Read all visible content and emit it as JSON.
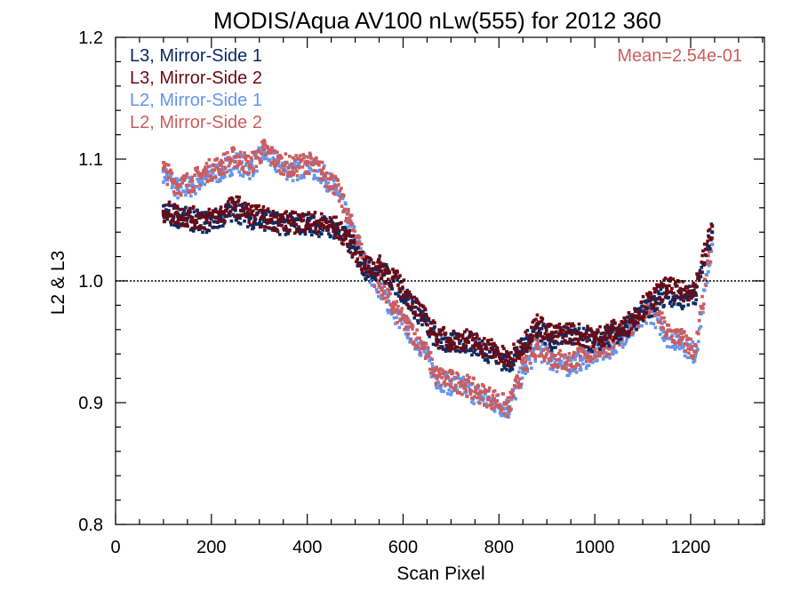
{
  "chart_data": {
    "type": "scatter",
    "title": "MODIS/Aqua AV100 nLw(555) for 2012 360",
    "xlabel": "Scan Pixel",
    "ylabel": "L2 & L3",
    "xlim": [
      0,
      1354
    ],
    "ylim": [
      0.8,
      1.2
    ],
    "x_ticks": [
      0,
      200,
      400,
      600,
      800,
      1000,
      1200
    ],
    "x_tick_labels": [
      "0",
      "200",
      "400",
      "600",
      "800",
      "1000",
      "1200"
    ],
    "y_ticks": [
      0.8,
      0.9,
      1.0,
      1.1,
      1.2
    ],
    "y_tick_labels": [
      "0.8",
      "0.9",
      "1.0",
      "1.1",
      "1.2"
    ],
    "reference_line": {
      "y": 1.0,
      "style": "dotted"
    },
    "annotation": {
      "text": "Mean=2.54e-01",
      "color": "#cd5c5c"
    },
    "legend_placement": "top-left",
    "grid": false,
    "series": [
      {
        "name": "L3, Mirror-Side 1",
        "color": "#0b2a63",
        "x": [
          100,
          130,
          160,
          190,
          220,
          250,
          280,
          310,
          340,
          370,
          400,
          430,
          460,
          490,
          520,
          550,
          580,
          610,
          640,
          670,
          700,
          730,
          760,
          790,
          820,
          850,
          880,
          910,
          940,
          970,
          1000,
          1030,
          1060,
          1090,
          1120,
          1150,
          1180,
          1210,
          1245
        ],
        "y": [
          1.055,
          1.053,
          1.05,
          1.048,
          1.052,
          1.058,
          1.052,
          1.05,
          1.047,
          1.046,
          1.047,
          1.045,
          1.043,
          1.03,
          1.01,
          1.01,
          1.0,
          0.985,
          0.97,
          0.952,
          0.948,
          0.95,
          0.945,
          0.94,
          0.932,
          0.945,
          0.962,
          0.952,
          0.955,
          0.953,
          0.95,
          0.955,
          0.958,
          0.97,
          0.98,
          0.99,
          0.985,
          0.99,
          1.04
        ]
      },
      {
        "name": "L3, Mirror-Side 2",
        "color": "#6b0a14",
        "x": [
          100,
          130,
          160,
          190,
          220,
          250,
          280,
          310,
          340,
          370,
          400,
          430,
          460,
          490,
          520,
          550,
          580,
          610,
          640,
          670,
          700,
          730,
          760,
          790,
          820,
          850,
          880,
          910,
          940,
          970,
          1000,
          1030,
          1060,
          1090,
          1120,
          1150,
          1180,
          1210,
          1245
        ],
        "y": [
          1.057,
          1.055,
          1.052,
          1.05,
          1.055,
          1.062,
          1.055,
          1.052,
          1.049,
          1.048,
          1.049,
          1.047,
          1.044,
          1.032,
          1.012,
          1.012,
          1.003,
          0.988,
          0.972,
          0.955,
          0.951,
          0.952,
          0.948,
          0.943,
          0.934,
          0.948,
          0.965,
          0.955,
          0.958,
          0.956,
          0.953,
          0.958,
          0.961,
          0.975,
          0.985,
          0.995,
          0.99,
          0.995,
          1.045
        ]
      },
      {
        "name": "L2, Mirror-Side 1",
        "color": "#6495ed",
        "x": [
          100,
          130,
          160,
          190,
          220,
          250,
          280,
          310,
          340,
          370,
          400,
          430,
          460,
          490,
          520,
          550,
          580,
          610,
          640,
          670,
          700,
          730,
          760,
          790,
          820,
          850,
          880,
          910,
          940,
          970,
          1000,
          1030,
          1060,
          1090,
          1120,
          1150,
          1180,
          1210,
          1245
        ],
        "y": [
          1.09,
          1.075,
          1.078,
          1.085,
          1.09,
          1.098,
          1.092,
          1.105,
          1.095,
          1.09,
          1.095,
          1.088,
          1.075,
          1.045,
          1.015,
          0.995,
          0.975,
          0.96,
          0.945,
          0.92,
          0.915,
          0.912,
          0.905,
          0.9,
          0.895,
          0.925,
          0.945,
          0.935,
          0.93,
          0.935,
          0.94,
          0.945,
          0.955,
          0.965,
          0.975,
          0.955,
          0.95,
          0.94,
          1.03
        ]
      },
      {
        "name": "L2, Mirror-Side 2",
        "color": "#cd5c5c",
        "x": [
          100,
          130,
          160,
          190,
          220,
          250,
          280,
          310,
          340,
          370,
          400,
          430,
          460,
          490,
          520,
          550,
          580,
          610,
          640,
          670,
          700,
          730,
          760,
          790,
          820,
          850,
          880,
          910,
          940,
          970,
          1000,
          1030,
          1060,
          1090,
          1120,
          1150,
          1180,
          1210,
          1245
        ],
        "y": [
          1.092,
          1.078,
          1.082,
          1.09,
          1.095,
          1.102,
          1.095,
          1.108,
          1.098,
          1.093,
          1.098,
          1.09,
          1.078,
          1.048,
          1.018,
          0.998,
          0.978,
          0.962,
          0.948,
          0.922,
          0.918,
          0.915,
          0.908,
          0.903,
          0.896,
          0.928,
          0.948,
          0.938,
          0.933,
          0.938,
          0.943,
          0.948,
          0.958,
          0.97,
          0.98,
          0.958,
          0.953,
          0.942,
          1.035
        ]
      }
    ]
  }
}
